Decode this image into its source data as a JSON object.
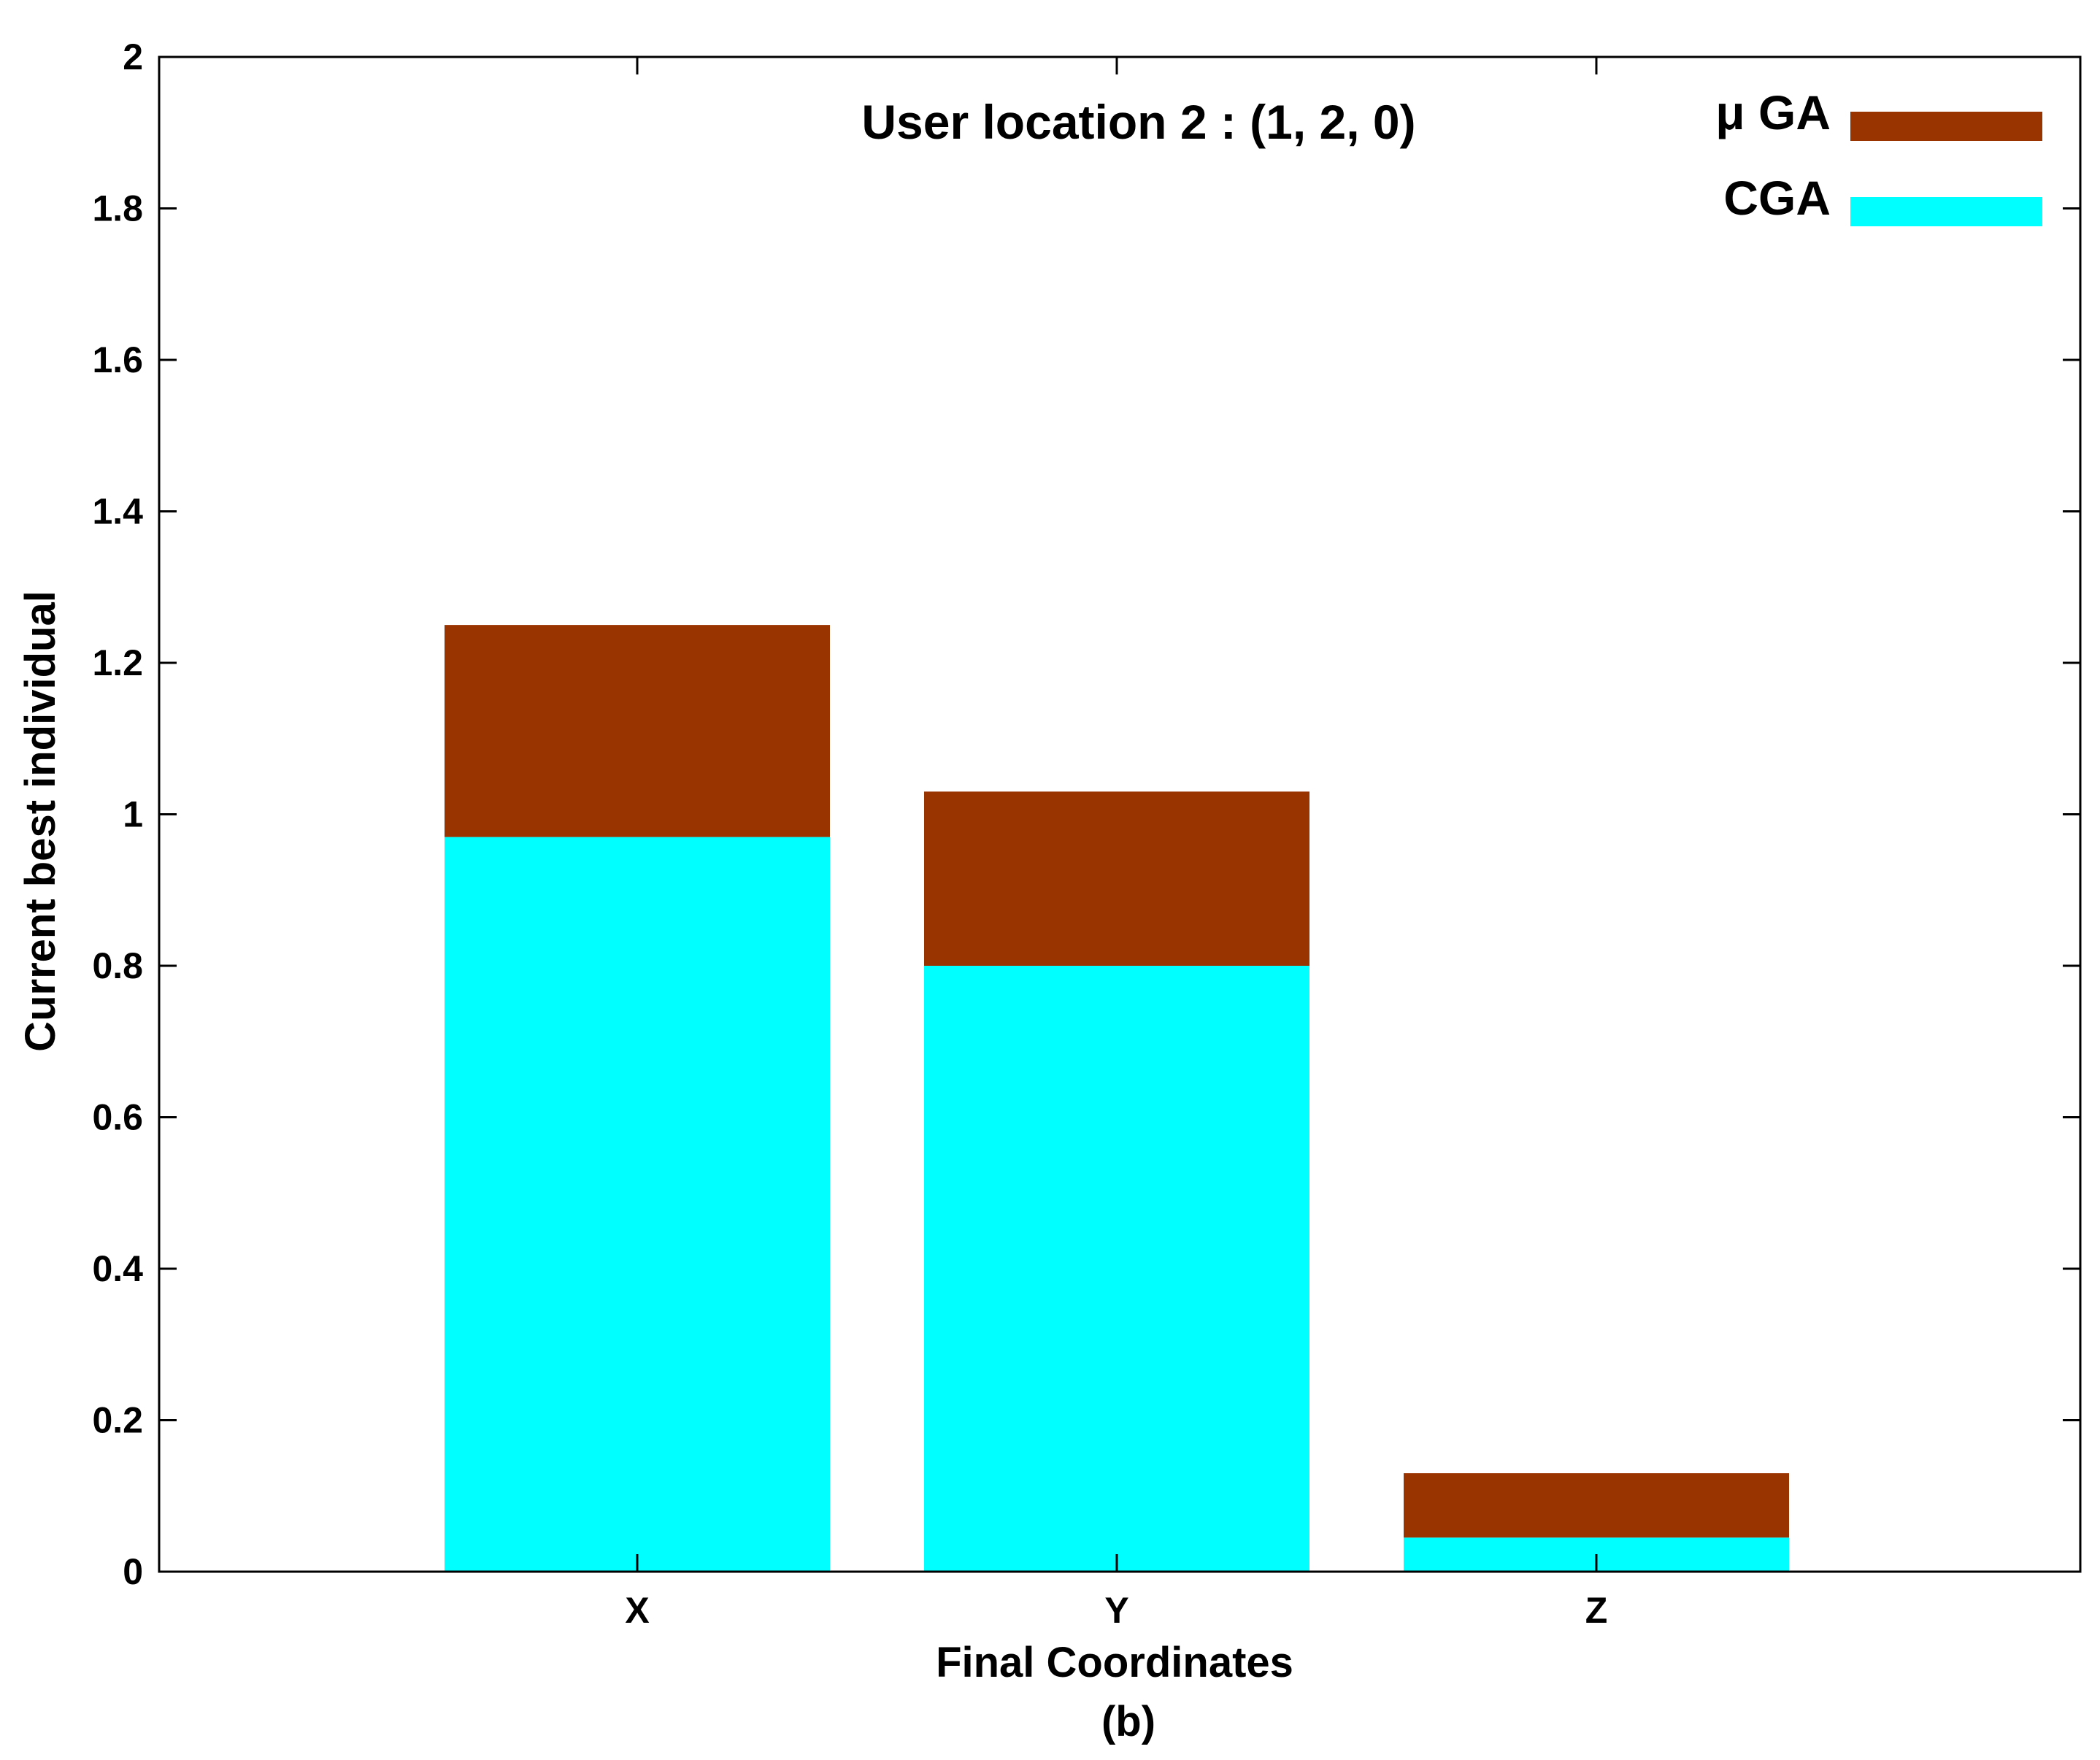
{
  "chart_data": {
    "type": "bar",
    "stacked": true,
    "title": "User location 2 : (1, 2, 0)",
    "xlabel": "Final Coordinates",
    "ylabel": "Current best individual",
    "caption": "(b)",
    "categories": [
      "X",
      "Y",
      "Z"
    ],
    "ylim": [
      0,
      2
    ],
    "yticks": [
      "0",
      "0.2",
      "0.4",
      "0.6",
      "0.8",
      "1",
      "1.2",
      "1.4",
      "1.6",
      "1.8",
      "2"
    ],
    "ytick_values": [
      0,
      0.2,
      0.4,
      0.6,
      0.8,
      1.0,
      1.2,
      1.4,
      1.6,
      1.8,
      2.0
    ],
    "grid": false,
    "legend_position": "top-right",
    "series": [
      {
        "name": "CGA",
        "color": "#00ffff",
        "values": [
          0.97,
          0.8,
          0.045
        ]
      },
      {
        "name": "μ GA",
        "color": "#993300",
        "values": [
          0.28,
          0.23,
          0.085
        ]
      }
    ],
    "legend_order": [
      "μ GA",
      "CGA"
    ]
  }
}
